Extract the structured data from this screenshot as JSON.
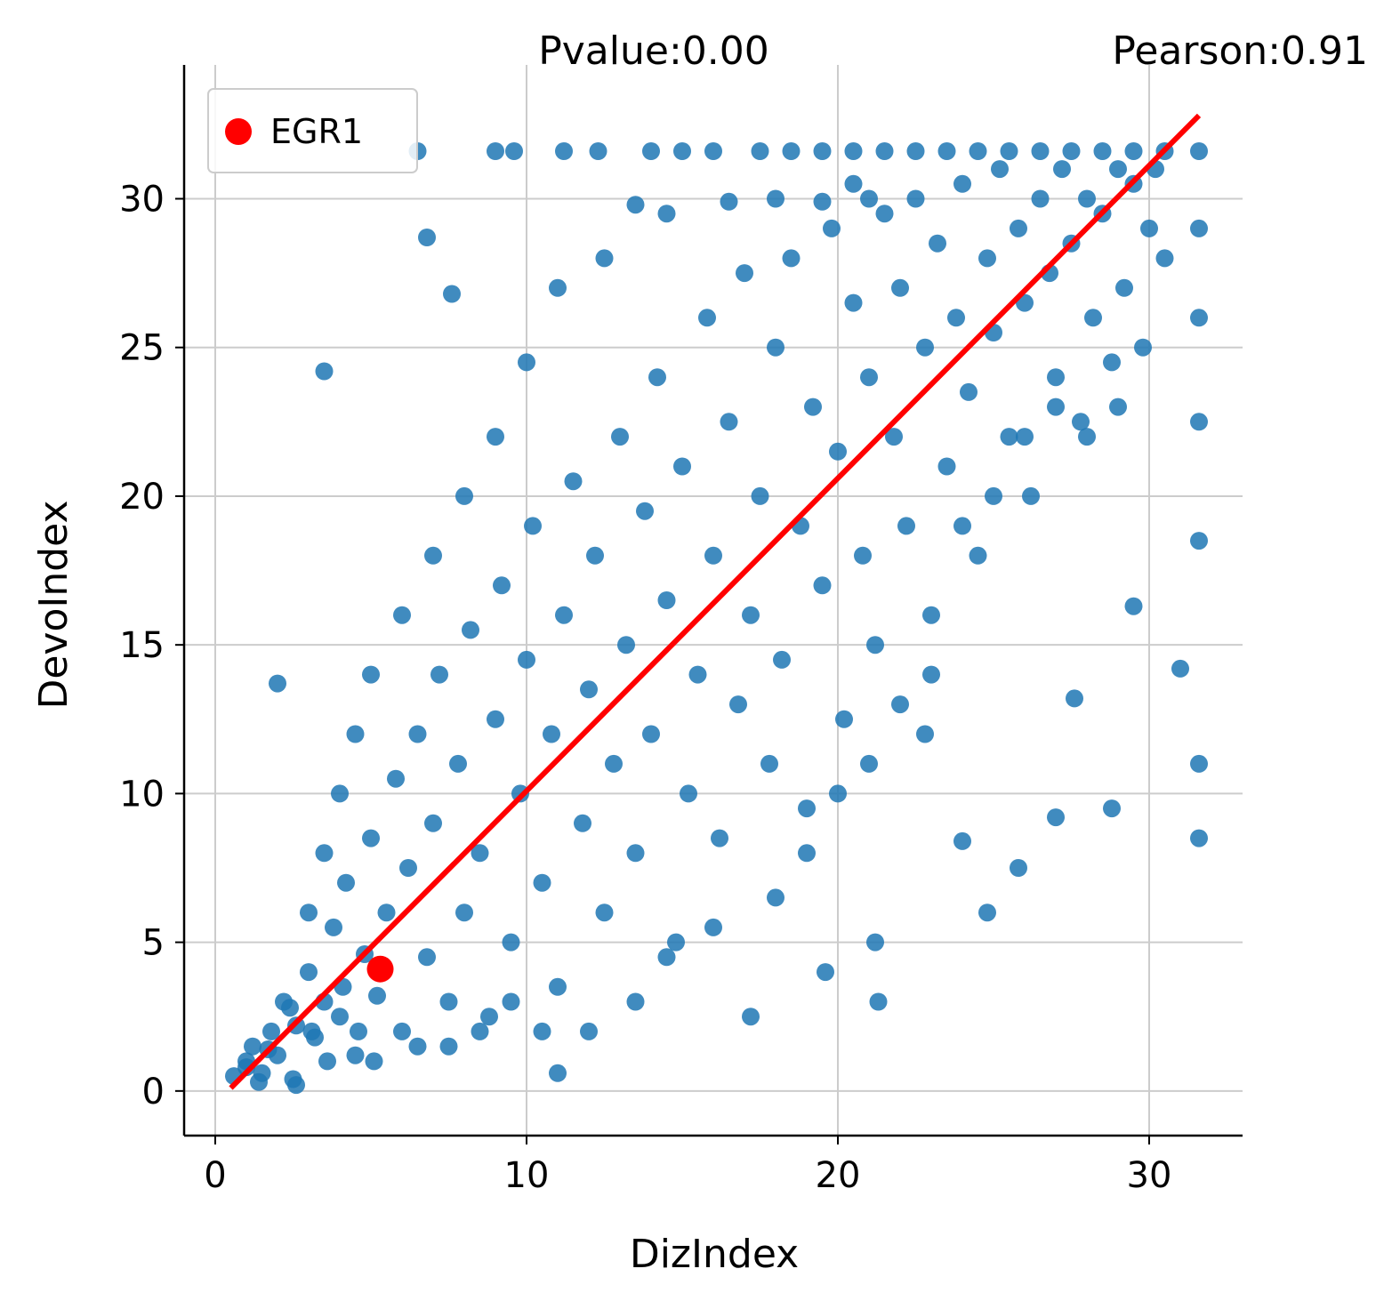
{
  "chart_data": {
    "type": "scatter",
    "title": "",
    "xlabel": "DizIndex",
    "ylabel": "DevoIndex",
    "xlim": [
      -1,
      33
    ],
    "ylim": [
      -1.5,
      34.5
    ],
    "xticks": [
      0,
      10,
      20,
      30
    ],
    "yticks": [
      0,
      5,
      10,
      15,
      20,
      25,
      30
    ],
    "grid": true,
    "legend_position": "top-left",
    "annotations": {
      "pvalue": "Pvalue:0.00",
      "pearson": "Pearson:0.91"
    },
    "series": [
      {
        "name": "",
        "kind": "scatter",
        "color": "#1f77b4",
        "description_note": "dense cloud of genes along the diagonal",
        "points": [
          [
            0.6,
            0.5
          ],
          [
            1.0,
            0.8
          ],
          [
            1.2,
            1.5
          ],
          [
            1.5,
            0.6
          ],
          [
            1.8,
            2.0
          ],
          [
            2.0,
            1.2
          ],
          [
            2.2,
            3.0
          ],
          [
            2.5,
            0.4
          ],
          [
            2.6,
            2.2
          ],
          [
            3.0,
            4.0
          ],
          [
            3.2,
            1.8
          ],
          [
            3.5,
            3.0
          ],
          [
            3.8,
            5.5
          ],
          [
            4.0,
            2.5
          ],
          [
            4.2,
            7.0
          ],
          [
            4.5,
            1.2
          ],
          [
            4.8,
            4.6
          ],
          [
            5.0,
            8.5
          ],
          [
            5.2,
            3.2
          ],
          [
            5.5,
            6.0
          ],
          [
            5.8,
            10.5
          ],
          [
            6.0,
            2.0
          ],
          [
            6.2,
            7.5
          ],
          [
            6.5,
            12.0
          ],
          [
            6.8,
            4.5
          ],
          [
            7.0,
            9.0
          ],
          [
            7.2,
            14.0
          ],
          [
            7.5,
            3.0
          ],
          [
            7.8,
            11.0
          ],
          [
            8.0,
            6.0
          ],
          [
            8.2,
            15.5
          ],
          [
            8.5,
            8.0
          ],
          [
            8.8,
            2.5
          ],
          [
            9.0,
            12.5
          ],
          [
            9.2,
            17.0
          ],
          [
            9.5,
            5.0
          ],
          [
            9.8,
            10.0
          ],
          [
            10.0,
            14.5
          ],
          [
            10.2,
            19.0
          ],
          [
            10.5,
            7.0
          ],
          [
            10.8,
            12.0
          ],
          [
            11.0,
            3.5
          ],
          [
            11.2,
            16.0
          ],
          [
            11.5,
            20.5
          ],
          [
            11.8,
            9.0
          ],
          [
            12.0,
            13.5
          ],
          [
            12.2,
            18.0
          ],
          [
            12.5,
            6.0
          ],
          [
            12.8,
            11.0
          ],
          [
            13.0,
            22.0
          ],
          [
            13.2,
            15.0
          ],
          [
            13.5,
            8.0
          ],
          [
            13.8,
            19.5
          ],
          [
            14.0,
            12.0
          ],
          [
            14.2,
            24.0
          ],
          [
            14.5,
            16.5
          ],
          [
            14.8,
            5.0
          ],
          [
            15.0,
            21.0
          ],
          [
            15.2,
            10.0
          ],
          [
            15.5,
            14.0
          ],
          [
            15.8,
            26.0
          ],
          [
            16.0,
            18.0
          ],
          [
            16.2,
            8.5
          ],
          [
            16.5,
            22.5
          ],
          [
            16.8,
            13.0
          ],
          [
            17.0,
            27.5
          ],
          [
            17.2,
            16.0
          ],
          [
            17.5,
            20.0
          ],
          [
            17.8,
            11.0
          ],
          [
            18.0,
            25.0
          ],
          [
            18.2,
            14.5
          ],
          [
            18.5,
            28.0
          ],
          [
            18.8,
            19.0
          ],
          [
            19.0,
            9.5
          ],
          [
            19.2,
            23.0
          ],
          [
            19.5,
            17.0
          ],
          [
            19.8,
            29.0
          ],
          [
            20.0,
            21.5
          ],
          [
            20.2,
            12.5
          ],
          [
            20.5,
            26.5
          ],
          [
            20.8,
            18.0
          ],
          [
            21.0,
            24.0
          ],
          [
            21.2,
            15.0
          ],
          [
            21.5,
            29.5
          ],
          [
            21.8,
            22.0
          ],
          [
            22.0,
            27.0
          ],
          [
            22.2,
            19.0
          ],
          [
            22.5,
            30.0
          ],
          [
            22.8,
            25.0
          ],
          [
            23.0,
            14.0
          ],
          [
            23.2,
            28.5
          ],
          [
            23.5,
            21.0
          ],
          [
            23.8,
            26.0
          ],
          [
            24.0,
            30.5
          ],
          [
            24.2,
            23.5
          ],
          [
            24.5,
            18.0
          ],
          [
            24.8,
            28.0
          ],
          [
            25.0,
            25.5
          ],
          [
            25.2,
            31.0
          ],
          [
            25.5,
            22.0
          ],
          [
            25.8,
            29.0
          ],
          [
            26.0,
            26.5
          ],
          [
            26.2,
            20.0
          ],
          [
            26.5,
            30.0
          ],
          [
            26.8,
            27.5
          ],
          [
            27.0,
            24.0
          ],
          [
            27.2,
            31.0
          ],
          [
            27.5,
            28.5
          ],
          [
            27.8,
            22.5
          ],
          [
            28.0,
            30.0
          ],
          [
            28.2,
            26.0
          ],
          [
            28.5,
            29.5
          ],
          [
            28.8,
            24.5
          ],
          [
            29.0,
            31.0
          ],
          [
            29.2,
            27.0
          ],
          [
            29.5,
            30.5
          ],
          [
            29.8,
            25.0
          ],
          [
            30.0,
            29.0
          ],
          [
            30.2,
            31.0
          ],
          [
            30.5,
            28.0
          ],
          [
            31.6,
            31.6
          ],
          [
            31.6,
            29.0
          ],
          [
            31.6,
            26.0
          ],
          [
            31.6,
            22.5
          ],
          [
            31.6,
            18.5
          ],
          [
            31.6,
            11.0
          ],
          [
            31.6,
            8.5
          ],
          [
            3.5,
            24.2
          ],
          [
            2.0,
            13.7
          ],
          [
            6.8,
            28.7
          ],
          [
            7.6,
            26.8
          ],
          [
            11.0,
            0.6
          ],
          [
            17.2,
            2.5
          ],
          [
            21.3,
            3.0
          ],
          [
            24.8,
            6.0
          ],
          [
            25.8,
            7.5
          ],
          [
            19.6,
            4.0
          ],
          [
            27.0,
            9.2
          ],
          [
            28.8,
            9.5
          ],
          [
            31.0,
            14.2
          ],
          [
            29.5,
            16.3
          ],
          [
            27.6,
            13.2
          ],
          [
            22.8,
            12.0
          ],
          [
            24.0,
            8.4
          ],
          [
            21.2,
            5.0
          ],
          [
            1.4,
            0.3
          ],
          [
            2.6,
            0.2
          ],
          [
            1.0,
            1.0
          ],
          [
            1.7,
            1.4
          ],
          [
            2.4,
            2.8
          ],
          [
            3.1,
            2.0
          ],
          [
            3.6,
            1.0
          ],
          [
            4.1,
            3.5
          ],
          [
            4.6,
            2.0
          ],
          [
            5.1,
            1.0
          ],
          [
            3.0,
            6.0
          ],
          [
            3.5,
            8.0
          ],
          [
            4.0,
            10.0
          ],
          [
            4.5,
            12.0
          ],
          [
            5.0,
            14.0
          ],
          [
            6.0,
            16.0
          ],
          [
            7.0,
            18.0
          ],
          [
            8.0,
            20.0
          ],
          [
            9.0,
            22.0
          ],
          [
            6.5,
            1.5
          ],
          [
            7.5,
            1.5
          ],
          [
            8.5,
            2.0
          ],
          [
            9.5,
            3.0
          ],
          [
            10.5,
            2.0
          ],
          [
            12.0,
            2.0
          ],
          [
            13.5,
            3.0
          ],
          [
            14.5,
            4.5
          ],
          [
            16.0,
            5.5
          ],
          [
            18.0,
            6.5
          ],
          [
            19.0,
            8.0
          ],
          [
            20.0,
            10.0
          ],
          [
            21.0,
            11.0
          ],
          [
            22.0,
            13.0
          ],
          [
            23.0,
            16.0
          ],
          [
            24.0,
            19.0
          ],
          [
            25.0,
            20.0
          ],
          [
            26.0,
            22.0
          ],
          [
            27.0,
            23.0
          ],
          [
            28.0,
            22.0
          ],
          [
            29.0,
            23.0
          ],
          [
            10.0,
            24.5
          ],
          [
            11.0,
            27.0
          ],
          [
            12.5,
            28.0
          ],
          [
            13.5,
            29.8
          ],
          [
            14.5,
            29.5
          ],
          [
            16.5,
            29.9
          ],
          [
            18.0,
            30.0
          ],
          [
            19.5,
            29.9
          ],
          [
            20.5,
            30.5
          ],
          [
            21.0,
            30.0
          ],
          [
            6.5,
            31.6
          ],
          [
            9.0,
            31.6
          ],
          [
            11.2,
            31.6
          ],
          [
            12.3,
            31.6
          ],
          [
            14.0,
            31.6
          ],
          [
            15.0,
            31.6
          ],
          [
            16.0,
            31.6
          ],
          [
            17.5,
            31.6
          ],
          [
            18.5,
            31.6
          ],
          [
            19.5,
            31.6
          ],
          [
            20.5,
            31.6
          ],
          [
            21.5,
            31.6
          ],
          [
            22.5,
            31.6
          ],
          [
            23.5,
            31.6
          ],
          [
            24.5,
            31.6
          ],
          [
            25.5,
            31.6
          ],
          [
            26.5,
            31.6
          ],
          [
            27.5,
            31.6
          ],
          [
            28.5,
            31.6
          ],
          [
            29.5,
            31.6
          ],
          [
            30.5,
            31.6
          ],
          [
            9.6,
            31.6
          ]
        ]
      },
      {
        "name": "EGR1",
        "kind": "scatter",
        "color": "#ff0000",
        "points": [
          [
            5.3,
            4.1
          ]
        ]
      },
      {
        "name": "",
        "kind": "line",
        "color": "#ff0000",
        "points": [
          [
            0.5,
            0.1
          ],
          [
            31.6,
            32.8
          ]
        ]
      }
    ]
  }
}
